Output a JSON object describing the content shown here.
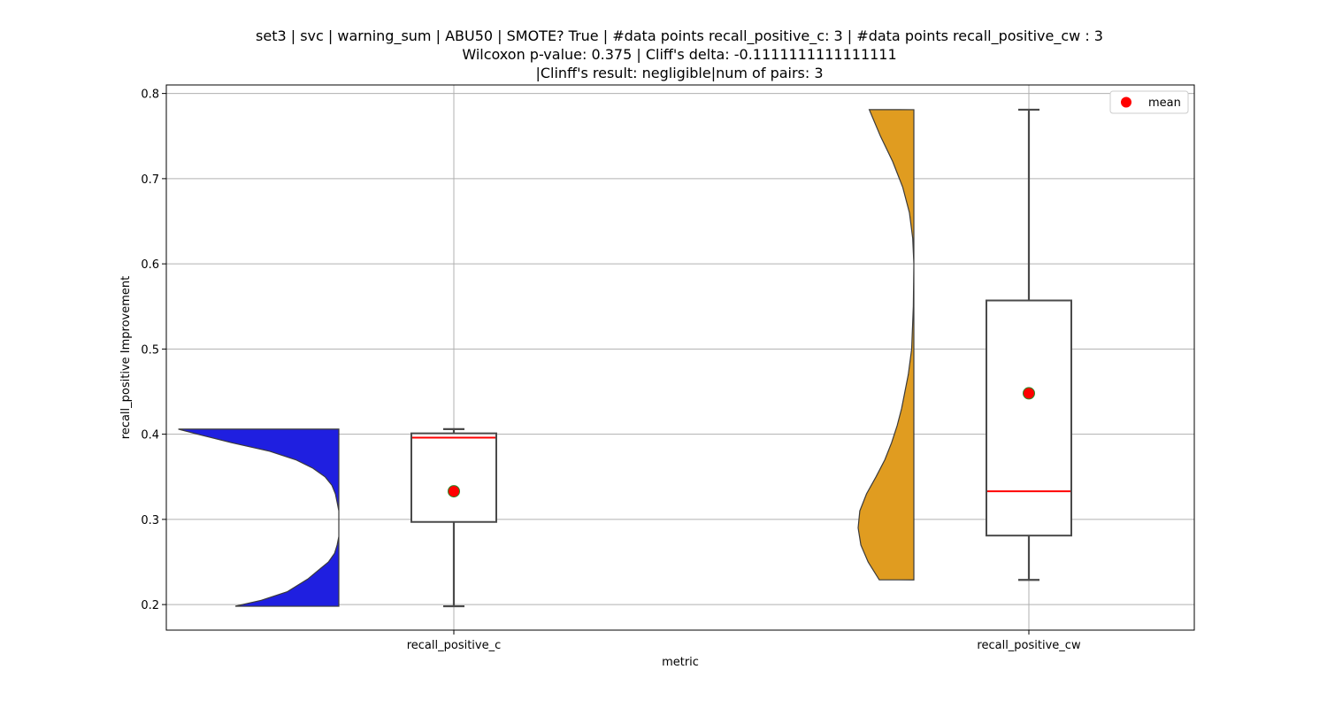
{
  "chart_data": {
    "type": "violin-box",
    "title_lines": [
      "set3 | svc | warning_sum | ABU50 | SMOTE? True | #data points recall_positive_c: 3 | #data points recall_positive_cw : 3",
      "Wilcoxon p-value: 0.375 | Cliff's delta: -0.1111111111111111",
      "|Clinff's result: negligible|num of pairs: 3"
    ],
    "xlabel": "metric",
    "ylabel": "recall_positive Improvement",
    "ylim": [
      0.17,
      0.81
    ],
    "yticks": [
      0.2,
      0.3,
      0.4,
      0.5,
      0.6,
      0.7,
      0.8
    ],
    "ytick_labels": [
      "0.2",
      "0.3",
      "0.4",
      "0.5",
      "0.6",
      "0.7",
      "0.8"
    ],
    "grid": true,
    "legend": {
      "position": "top-right",
      "entries": [
        {
          "label": "mean",
          "color": "#ff0000"
        }
      ]
    },
    "categories": [
      "recall_positive_c",
      "recall_positive_cw"
    ],
    "series": [
      {
        "category": "recall_positive_c",
        "violin_color": "#1f1fe0",
        "violin_side": "left",
        "min": 0.198,
        "q1": 0.297,
        "median": 0.396,
        "q3": 0.401,
        "max": 0.406,
        "mean": 0.333,
        "density": [
          [
            0.198,
            0.6
          ],
          [
            0.205,
            0.45
          ],
          [
            0.215,
            0.3
          ],
          [
            0.23,
            0.18
          ],
          [
            0.24,
            0.12
          ],
          [
            0.25,
            0.06
          ],
          [
            0.26,
            0.025
          ],
          [
            0.27,
            0.01
          ],
          [
            0.28,
            0.0
          ],
          [
            0.3,
            0.0
          ],
          [
            0.31,
            0.0
          ],
          [
            0.32,
            0.01
          ],
          [
            0.33,
            0.02
          ],
          [
            0.34,
            0.04
          ],
          [
            0.35,
            0.08
          ],
          [
            0.36,
            0.15
          ],
          [
            0.37,
            0.25
          ],
          [
            0.38,
            0.4
          ],
          [
            0.39,
            0.62
          ],
          [
            0.4,
            0.82
          ],
          [
            0.406,
            0.93
          ]
        ]
      },
      {
        "category": "recall_positive_cw",
        "violin_color": "#e09c20",
        "violin_side": "left",
        "min": 0.229,
        "q1": 0.281,
        "median": 0.333,
        "q3": 0.557,
        "max": 0.781,
        "mean": 0.448,
        "density": [
          [
            0.229,
            0.62
          ],
          [
            0.25,
            0.82
          ],
          [
            0.27,
            0.95
          ],
          [
            0.29,
            1.0
          ],
          [
            0.31,
            0.97
          ],
          [
            0.33,
            0.85
          ],
          [
            0.35,
            0.68
          ],
          [
            0.37,
            0.52
          ],
          [
            0.39,
            0.4
          ],
          [
            0.41,
            0.3
          ],
          [
            0.43,
            0.22
          ],
          [
            0.45,
            0.16
          ],
          [
            0.47,
            0.1
          ],
          [
            0.5,
            0.04
          ],
          [
            0.55,
            0.01
          ],
          [
            0.6,
            0.0
          ],
          [
            0.63,
            0.02
          ],
          [
            0.66,
            0.08
          ],
          [
            0.69,
            0.2
          ],
          [
            0.72,
            0.38
          ],
          [
            0.75,
            0.6
          ],
          [
            0.781,
            0.8
          ]
        ]
      }
    ]
  }
}
